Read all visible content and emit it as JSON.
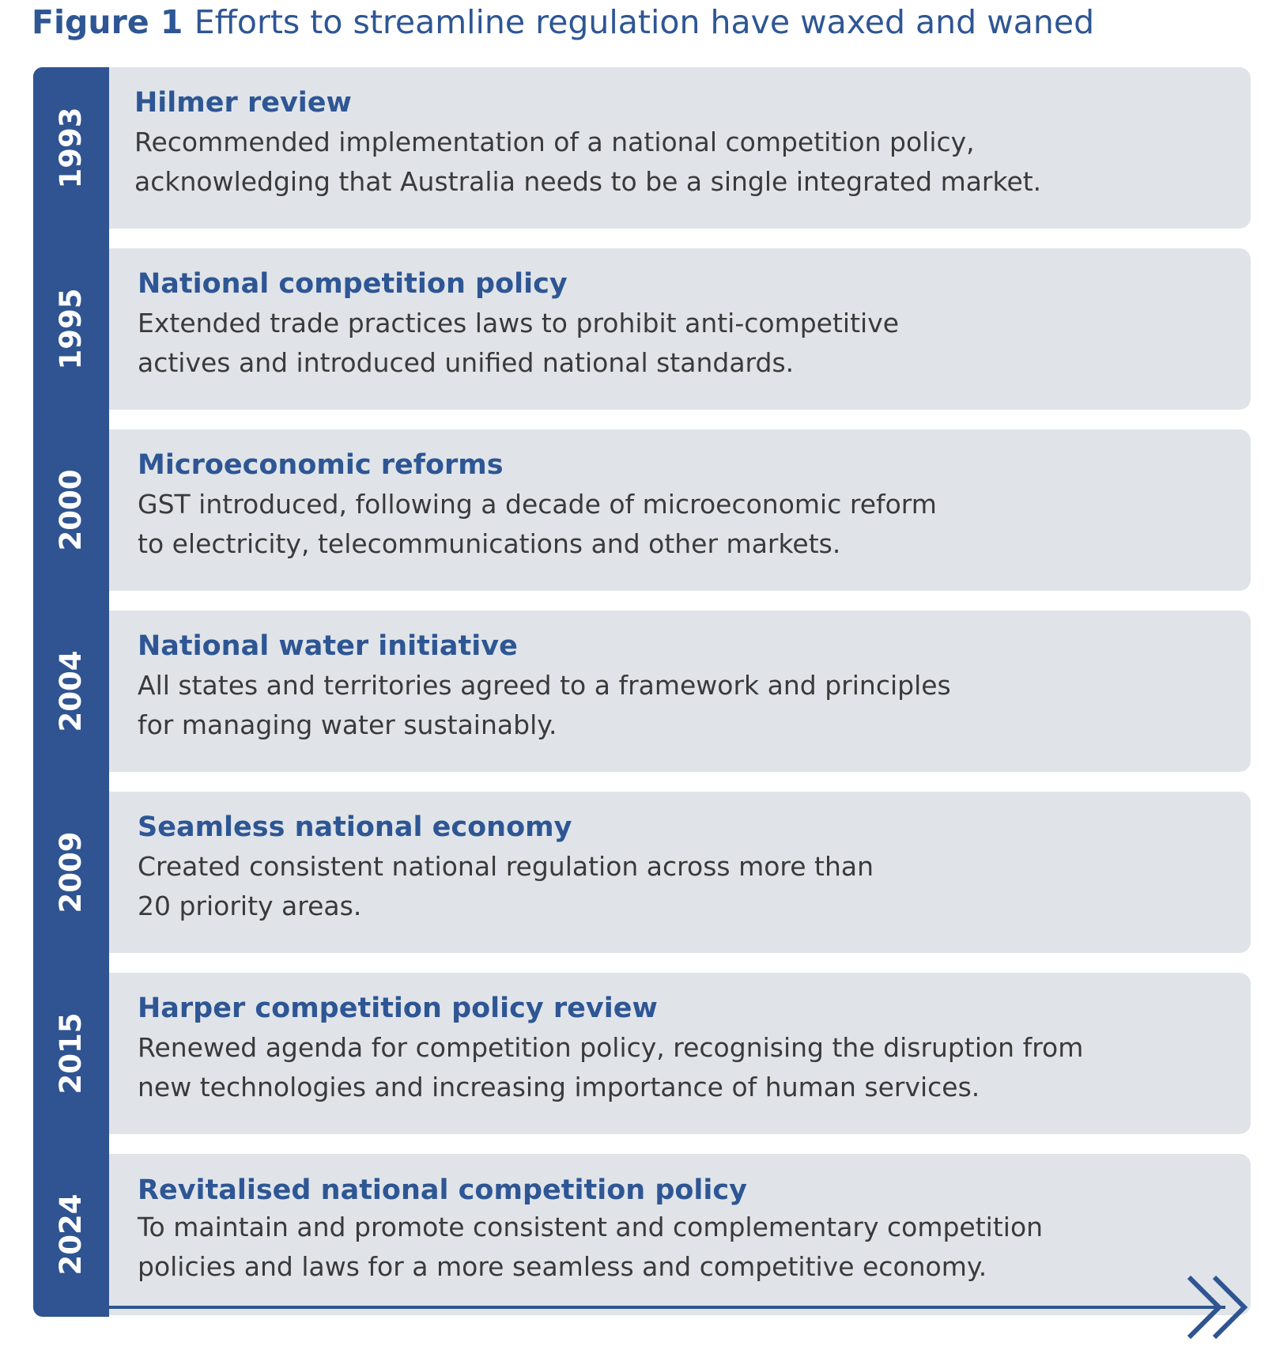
{
  "figure": {
    "label": "Figure 1",
    "caption": "Efforts to streamline regulation have waxed and waned"
  },
  "colors": {
    "accent": "#2f5491",
    "title_text": "#2e5694",
    "card_background": "#e0e4e9",
    "body_text": "#3a3a3a"
  },
  "events": [
    {
      "year": "1993",
      "title": "Hilmer review",
      "lines": [
        "Recommended implementation of a national competition policy,",
        "acknowledging that Australia needs to be a single integrated market."
      ]
    },
    {
      "year": "1995",
      "title": "National competition policy",
      "lines": [
        "Extended trade practices laws to prohibit anti-competitive",
        "actives and introduced unified national standards."
      ]
    },
    {
      "year": "2000",
      "title": "Microeconomic reforms",
      "lines": [
        "GST introduced, following a decade of microeconomic reform",
        "to electricity, telecommunications and other markets."
      ]
    },
    {
      "year": "2004",
      "title": "National water initiative",
      "lines": [
        "All states and territories agreed to a framework and principles",
        "for managing water sustainably."
      ]
    },
    {
      "year": "2009",
      "title": "Seamless national economy",
      "lines": [
        "Created consistent national regulation across more than",
        "20 priority areas."
      ]
    },
    {
      "year": "2015",
      "title": "Harper competition policy review",
      "lines": [
        "Renewed agenda for competition policy, recognising the disruption from",
        "new technologies and increasing importance of human services."
      ]
    },
    {
      "year": "2024",
      "title": "Revitalised national competition policy",
      "lines": [
        "To maintain and promote consistent and complementary competition",
        "policies and laws for a more seamless and competitive economy."
      ]
    }
  ],
  "arrow_icon": "double-chevron-right-icon"
}
